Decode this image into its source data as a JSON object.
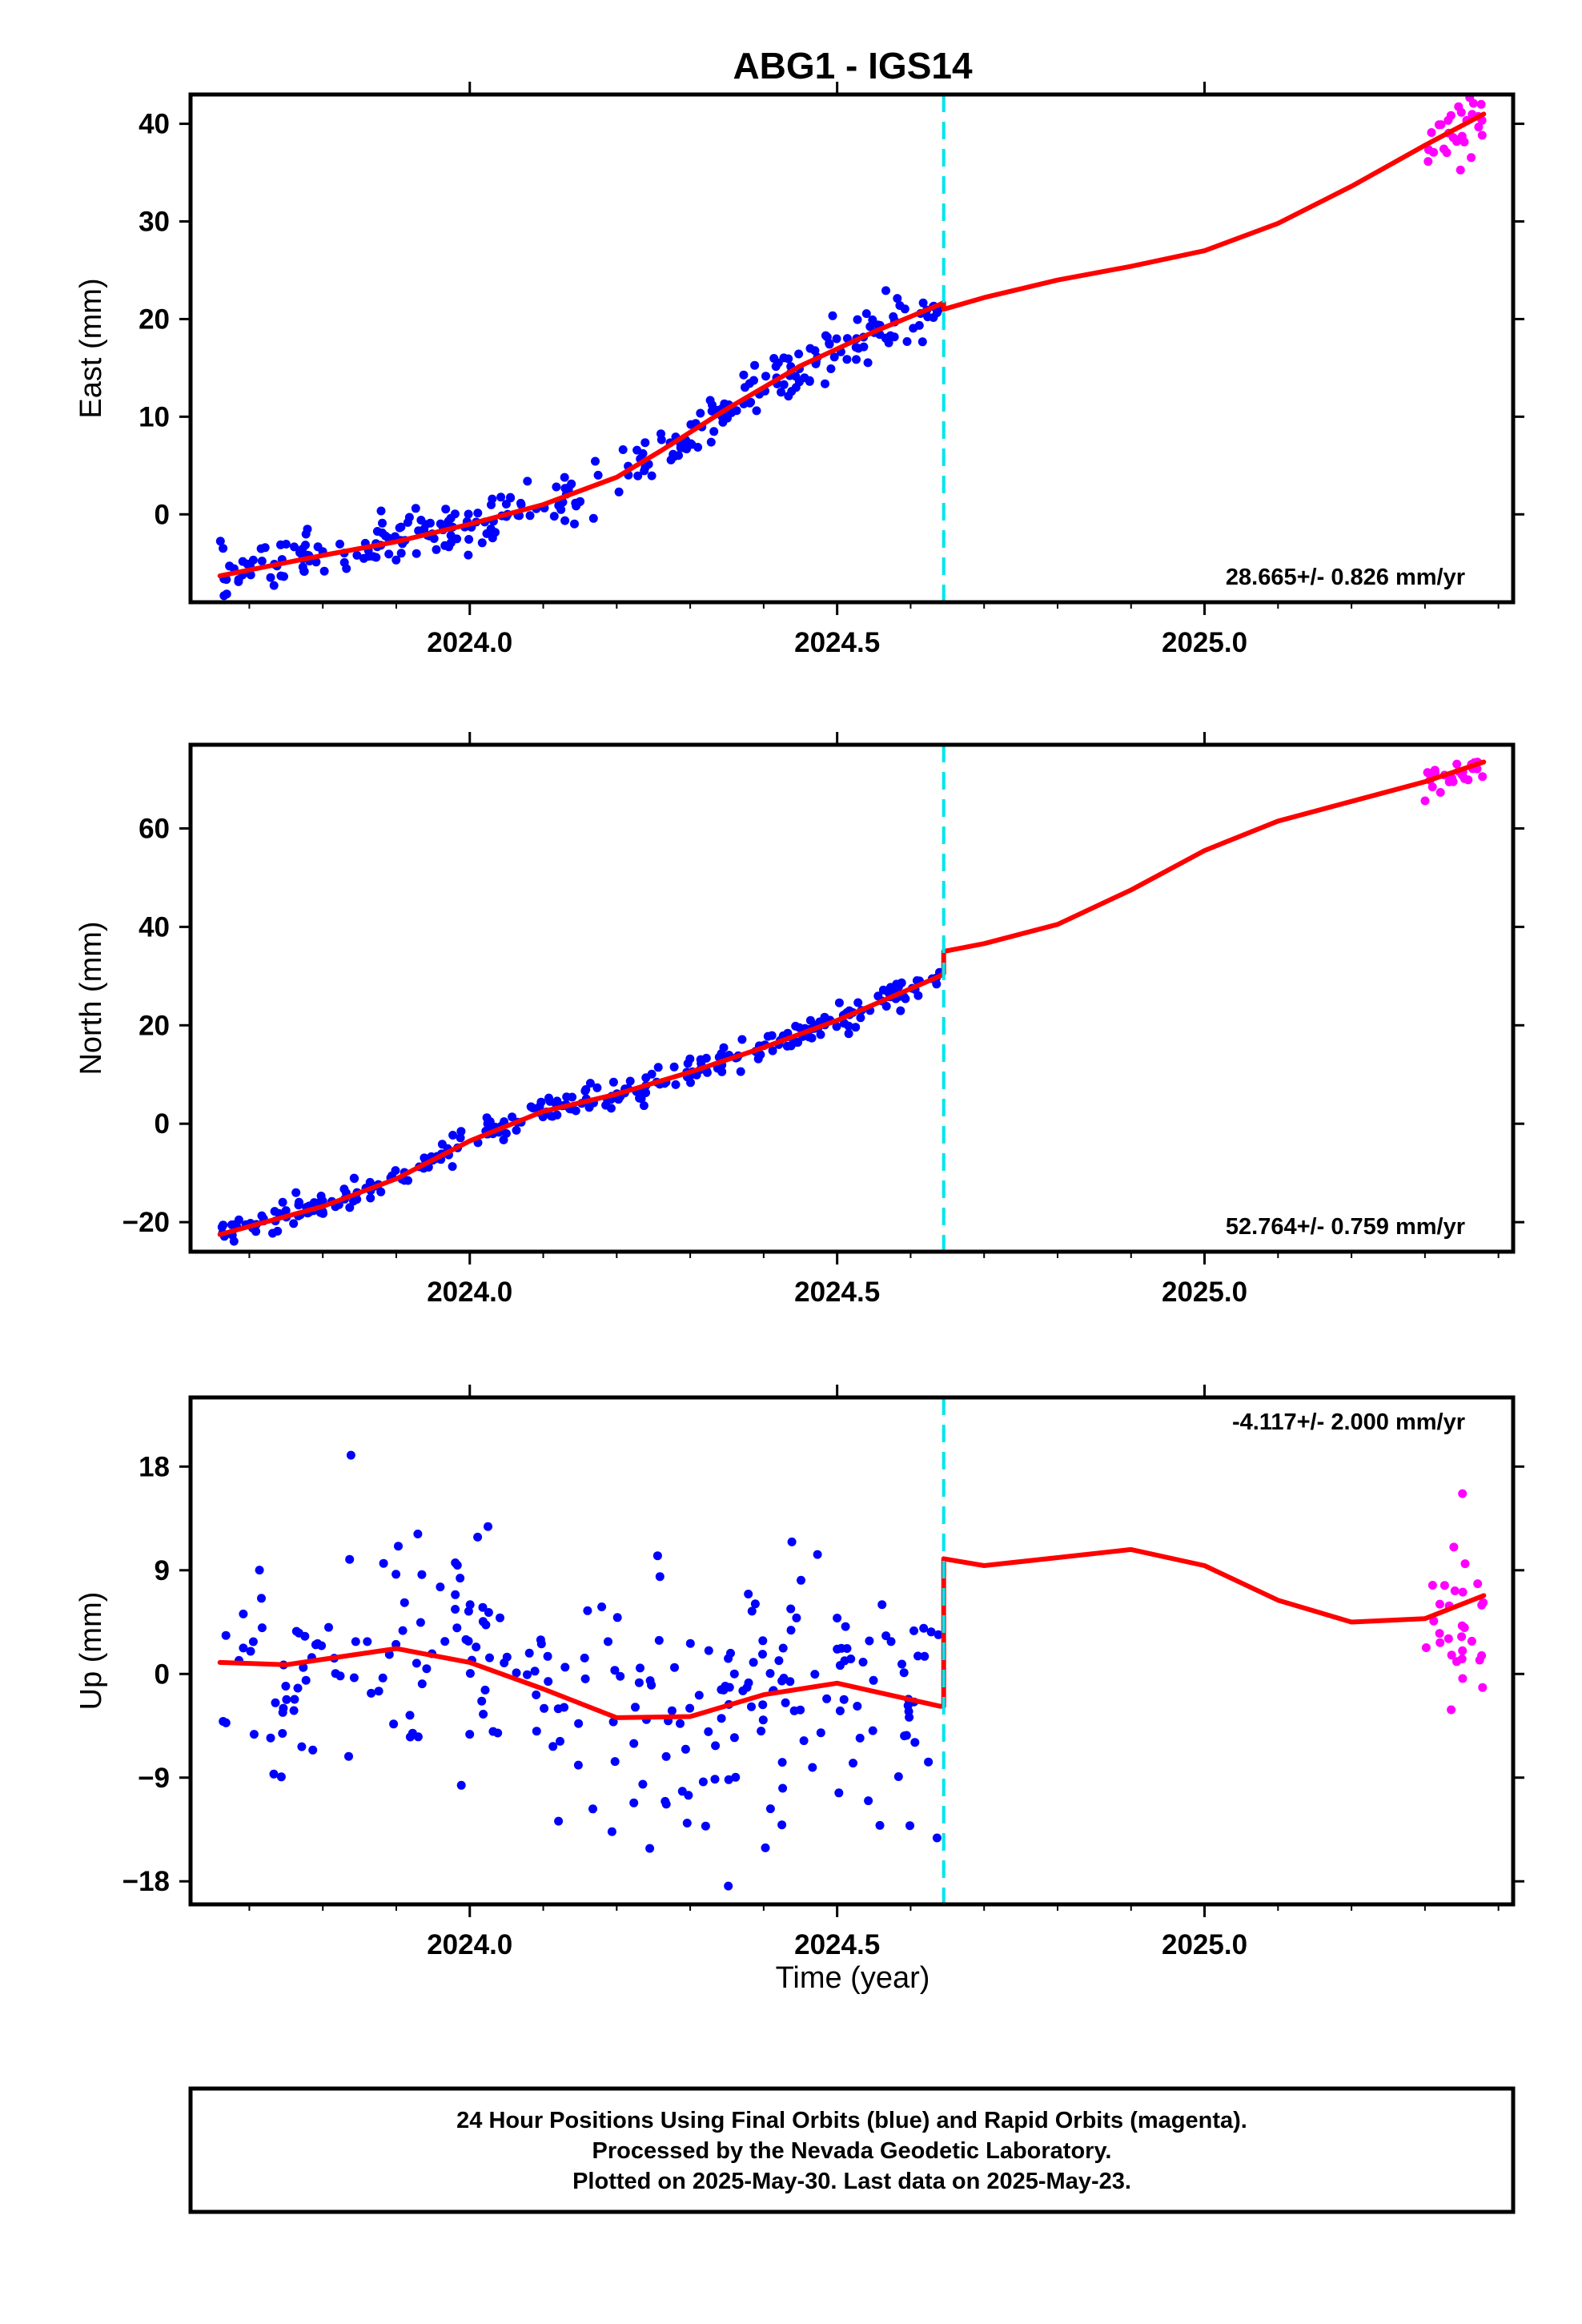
{
  "title": "ABG1 - IGS14",
  "xlabel": "Time (year)",
  "footer": {
    "lines": [
      "24 Hour Positions Using Final Orbits (blue) and Rapid Orbits (magenta).",
      "Processed by the Nevada Geodetic Laboratory.",
      "Plotted on 2025-May-30. Last data on 2025-May-23."
    ]
  },
  "colors": {
    "final_orbits": "#0000ff",
    "rapid_orbits": "#ff00ff",
    "model": "#ff0000",
    "event_line": "#00e5ee"
  },
  "chart_data": [
    {
      "type": "scatter",
      "component": "East",
      "ylabel": "East (mm)",
      "xlim": [
        2023.62,
        2025.42
      ],
      "ylim": [
        -9,
        43
      ],
      "yticks": [
        0,
        10,
        20,
        30,
        40
      ],
      "xticks": [
        2024.0,
        2024.5,
        2025.0
      ],
      "xtick_labels": [
        "2024.0",
        "2024.5",
        "2025.0"
      ],
      "rate_label": "28.665+/- 0.826 mm/yr",
      "rate_position": "bottom-right",
      "event_line_x": 2024.645,
      "final_series": {
        "x_range": [
          2023.66,
          2024.64
        ],
        "approx_n": 300,
        "trend_knots": [
          [
            2023.66,
            -6.3
          ],
          [
            2023.8,
            -4.2
          ],
          [
            2023.9,
            -2.8
          ],
          [
            2024.0,
            -1.0
          ],
          [
            2024.1,
            1.0
          ],
          [
            2024.2,
            3.8
          ],
          [
            2024.26,
            6.5
          ],
          [
            2024.35,
            10.8
          ],
          [
            2024.45,
            15.2
          ],
          [
            2024.55,
            18.7
          ],
          [
            2024.64,
            21.3
          ]
        ],
        "scatter_mm": 1.3
      },
      "rapid_series": {
        "x_range": [
          2025.3,
          2025.38
        ],
        "approx_n": 30,
        "trend_knots": [
          [
            2025.3,
            37.8
          ],
          [
            2025.38,
            40.8
          ]
        ],
        "scatter_mm": 1.5
      },
      "model_curve": [
        [
          2023.66,
          -6.3
        ],
        [
          2023.8,
          -4.2
        ],
        [
          2023.9,
          -2.8
        ],
        [
          2024.0,
          -1.0
        ],
        [
          2024.1,
          1.0
        ],
        [
          2024.2,
          3.8
        ],
        [
          2024.26,
          6.5
        ],
        [
          2024.35,
          10.8
        ],
        [
          2024.45,
          15.2
        ],
        [
          2024.55,
          18.7
        ],
        [
          2024.64,
          21.5
        ],
        [
          2024.645,
          21.7
        ],
        [
          2024.645,
          21.0
        ],
        [
          2024.7,
          22.2
        ],
        [
          2024.8,
          24.0
        ],
        [
          2024.9,
          25.4
        ],
        [
          2025.0,
          27.0
        ],
        [
          2025.1,
          29.8
        ],
        [
          2025.2,
          33.6
        ],
        [
          2025.3,
          37.8
        ],
        [
          2025.38,
          41.0
        ]
      ]
    },
    {
      "type": "scatter",
      "component": "North",
      "ylabel": "North (mm)",
      "xlim": [
        2023.62,
        2025.42
      ],
      "ylim": [
        -26,
        77
      ],
      "yticks": [
        -20,
        0,
        20,
        40,
        60
      ],
      "xticks": [
        2024.0,
        2024.5,
        2025.0
      ],
      "xtick_labels": [
        "2024.0",
        "2024.5",
        "2025.0"
      ],
      "rate_label": "52.764+/- 0.759 mm/yr",
      "rate_position": "bottom-right",
      "event_line_x": 2024.645,
      "final_series": {
        "x_range": [
          2023.66,
          2024.64
        ],
        "approx_n": 300,
        "trend_knots": [
          [
            2023.66,
            -22.5
          ],
          [
            2023.8,
            -16.8
          ],
          [
            2023.9,
            -11.2
          ],
          [
            2024.0,
            -3.5
          ],
          [
            2024.1,
            2.5
          ],
          [
            2024.2,
            6.0
          ],
          [
            2024.3,
            10.5
          ],
          [
            2024.4,
            15.5
          ],
          [
            2024.5,
            21.0
          ],
          [
            2024.64,
            30.0
          ]
        ],
        "scatter_mm": 1.4
      },
      "rapid_series": {
        "x_range": [
          2025.3,
          2025.38
        ],
        "approx_n": 25,
        "trend_knots": [
          [
            2025.3,
            68.5
          ],
          [
            2025.38,
            73.0
          ]
        ],
        "scatter_mm": 1.6
      },
      "model_curve": [
        [
          2023.66,
          -22.5
        ],
        [
          2023.8,
          -16.8
        ],
        [
          2023.9,
          -11.2
        ],
        [
          2024.0,
          -3.5
        ],
        [
          2024.1,
          2.5
        ],
        [
          2024.2,
          6.0
        ],
        [
          2024.3,
          10.5
        ],
        [
          2024.4,
          15.5
        ],
        [
          2024.5,
          21.0
        ],
        [
          2024.64,
          30.0
        ],
        [
          2024.645,
          30.5
        ],
        [
          2024.645,
          35.0
        ],
        [
          2024.7,
          36.6
        ],
        [
          2024.8,
          40.5
        ],
        [
          2024.9,
          47.5
        ],
        [
          2025.0,
          55.5
        ],
        [
          2025.1,
          61.5
        ],
        [
          2025.2,
          65.5
        ],
        [
          2025.3,
          69.5
        ],
        [
          2025.38,
          73.5
        ]
      ]
    },
    {
      "type": "scatter",
      "component": "Up",
      "ylabel": "Up (mm)",
      "xlim": [
        2023.62,
        2025.42
      ],
      "ylim": [
        -20,
        24
      ],
      "yticks": [
        -18,
        -9,
        0,
        9,
        18
      ],
      "xticks": [
        2024.0,
        2024.5,
        2025.0
      ],
      "xtick_labels": [
        "2024.0",
        "2024.5",
        "2025.0"
      ],
      "rate_label": "-4.117+/- 2.000 mm/yr",
      "rate_position": "top-right",
      "event_line_x": 2024.645,
      "final_series": {
        "x_range": [
          2023.66,
          2024.64
        ],
        "approx_n": 260,
        "trend_knots": [
          [
            2023.66,
            1.0
          ],
          [
            2023.75,
            0.8
          ],
          [
            2023.9,
            2.2
          ],
          [
            2024.0,
            1.0
          ],
          [
            2024.1,
            -1.3
          ],
          [
            2024.2,
            -3.8
          ],
          [
            2024.3,
            -3.7
          ],
          [
            2024.4,
            -1.8
          ],
          [
            2024.5,
            -0.8
          ],
          [
            2024.64,
            -2.8
          ]
        ],
        "scatter_mm": 5.5
      },
      "rapid_series": {
        "x_range": [
          2025.3,
          2025.38
        ],
        "approx_n": 30,
        "trend_knots": [
          [
            2025.3,
            3.0
          ],
          [
            2025.38,
            6.0
          ]
        ],
        "scatter_mm": 4.5
      },
      "model_curve": [
        [
          2023.66,
          1.0
        ],
        [
          2023.75,
          0.8
        ],
        [
          2023.9,
          2.2
        ],
        [
          2024.0,
          1.0
        ],
        [
          2024.1,
          -1.3
        ],
        [
          2024.2,
          -3.8
        ],
        [
          2024.3,
          -3.7
        ],
        [
          2024.4,
          -1.8
        ],
        [
          2024.5,
          -0.8
        ],
        [
          2024.64,
          -2.8
        ],
        [
          2024.645,
          -2.8
        ],
        [
          2024.645,
          10.0
        ],
        [
          2024.7,
          9.4
        ],
        [
          2024.8,
          10.1
        ],
        [
          2024.9,
          10.8
        ],
        [
          2025.0,
          9.4
        ],
        [
          2025.1,
          6.4
        ],
        [
          2025.2,
          4.5
        ],
        [
          2025.3,
          4.8
        ],
        [
          2025.38,
          6.8
        ]
      ]
    }
  ]
}
